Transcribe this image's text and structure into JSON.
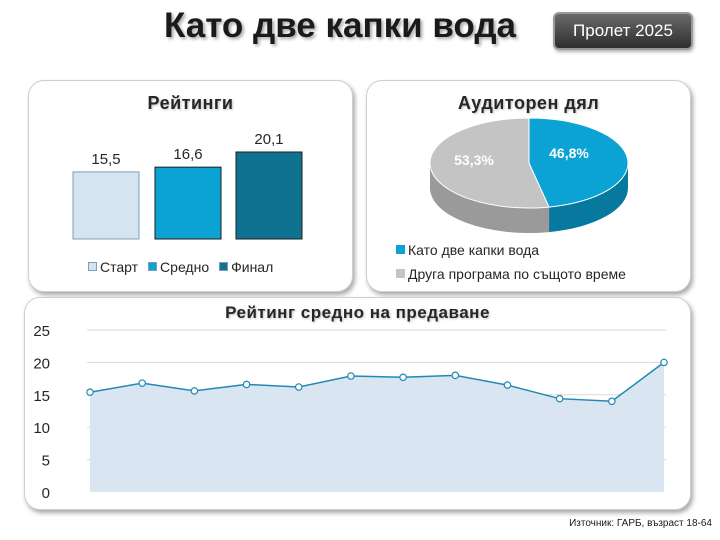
{
  "header": {
    "title": "Като две капки вода",
    "season": "Пролет 2025"
  },
  "source_note": "Източник: ГАРБ, възраст 18-64",
  "chart_data": [
    {
      "type": "bar",
      "title": "Рейтинги",
      "categories": [
        "Старт",
        "Средно",
        "Финал"
      ],
      "values": [
        15.5,
        16.6,
        20.1
      ],
      "value_labels": [
        "15,5",
        "16,6",
        "20,1"
      ],
      "colors": [
        "#d6e4ef",
        "#0aa3d3",
        "#0e7290"
      ],
      "ylim": [
        0,
        20.1
      ],
      "legend_position": "bottom"
    },
    {
      "type": "pie",
      "title": "Аудиторен дял",
      "labels": [
        "Като две капки вода",
        "Друга програма по същото време"
      ],
      "values": [
        46.8,
        53.3
      ],
      "value_labels": [
        "46,8%",
        "53,3%"
      ],
      "colors": [
        "#0aa3d3",
        "#c4c4c4"
      ],
      "style": "3d",
      "legend_position": "bottom"
    },
    {
      "type": "area",
      "title": "Рейтинг средно на предаване",
      "y_ticks": [
        "0",
        "5",
        "10",
        "15",
        "20",
        "25"
      ],
      "ylim": [
        0,
        25
      ],
      "values": [
        15.4,
        16.8,
        15.6,
        16.6,
        16.2,
        17.9,
        17.7,
        18.0,
        16.5,
        14.4,
        14.0,
        20.0
      ],
      "line_color": "#1f8ab3",
      "fill_color": "#d9e5f0",
      "grid": true
    }
  ]
}
